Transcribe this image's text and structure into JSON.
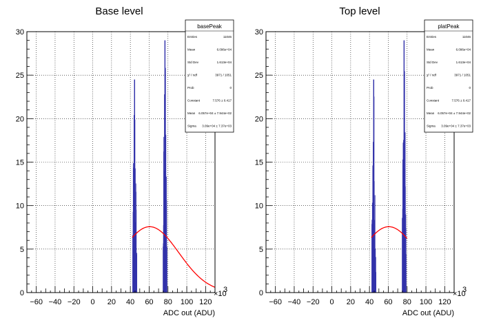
{
  "chart_data": [
    {
      "type": "histogram",
      "title": "Base level",
      "xlabel": "ADC out (ADU)",
      "x_multiplier": "×10",
      "x_multiplier_exp": "3",
      "xlim": [
        -70,
        130
      ],
      "ylim": [
        0,
        30
      ],
      "xticks": [
        -60,
        -40,
        -20,
        0,
        20,
        40,
        60,
        80,
        100,
        120
      ],
      "yticks": [
        0,
        5,
        10,
        15,
        20,
        25,
        30
      ],
      "grid": true,
      "hist_color": "#3333aa",
      "fit_color": "#ff0000",
      "stats": {
        "name": "basePeak",
        "rows": [
          {
            "label": "Entries",
            "value": "11046"
          },
          {
            "label": "Mean",
            "value": "6.096e+04"
          },
          {
            "label": "Std Dev",
            "value": "1.613e+04"
          },
          {
            "label": "χ² / ndf",
            "value": "3971 / 1051"
          },
          {
            "label": "Prob",
            "value": "0"
          },
          {
            "label": "Constant",
            "value": "7.576 ± 0.417"
          },
          {
            "label": "Mean",
            "value": "6.057e+04 ± 7.944e+02"
          },
          {
            "label": "Sigma",
            "value": "3.09e+04 ± 7.37e+03"
          }
        ]
      },
      "peaks": [
        {
          "center": 44.5,
          "range": [
            42.5,
            47.0
          ],
          "max": 24.5
        },
        {
          "center": 76.8,
          "range": [
            74.8,
            79.2
          ],
          "max": 29.0
        }
      ],
      "fit": {
        "constant": 7.576,
        "mean": 60.57,
        "sigma": 30.9,
        "x_range": [
          42,
          130
        ]
      }
    },
    {
      "type": "histogram",
      "title": "Top level",
      "xlabel": "ADC out (ADU)",
      "x_multiplier": "×10",
      "x_multiplier_exp": "3",
      "xlim": [
        -70,
        130
      ],
      "ylim": [
        0,
        30
      ],
      "xticks": [
        -60,
        -40,
        -20,
        0,
        20,
        40,
        60,
        80,
        100,
        120
      ],
      "yticks": [
        0,
        5,
        10,
        15,
        20,
        25,
        30
      ],
      "grid": true,
      "hist_color": "#3333aa",
      "fit_color": "#ff0000",
      "stats": {
        "name": "platPeak",
        "rows": [
          {
            "label": "Entries",
            "value": "11046"
          },
          {
            "label": "Mean",
            "value": "6.096e+04"
          },
          {
            "label": "Std Dev",
            "value": "1.613e+04"
          },
          {
            "label": "χ² / ndf",
            "value": "3971 / 1051"
          },
          {
            "label": "Prob",
            "value": "0"
          },
          {
            "label": "Constant",
            "value": "7.576 ± 0.417"
          },
          {
            "label": "Mean",
            "value": "6.057e+04 ± 7.944e+02"
          },
          {
            "label": "Sigma",
            "value": "3.09e+04 ± 7.37e+03"
          }
        ]
      },
      "peaks": [
        {
          "center": 44.5,
          "range": [
            42.5,
            47.0
          ],
          "max": 24.5
        },
        {
          "center": 76.8,
          "range": [
            74.8,
            79.2
          ],
          "max": 29.0
        }
      ],
      "fit": {
        "constant": 7.576,
        "mean": 60.57,
        "sigma": 30.9,
        "x_range": [
          42,
          80
        ]
      }
    }
  ]
}
